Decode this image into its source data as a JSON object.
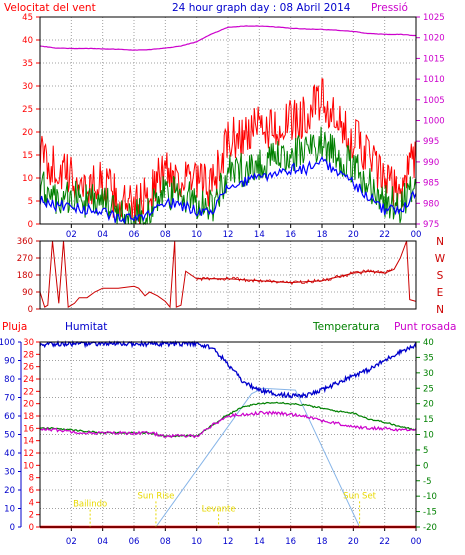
{
  "header": {
    "wind_label": "Velocitat del vent",
    "title": "24 hour graph day : 08 Abril 2014",
    "pressure_label": "Pressió"
  },
  "lower_header": {
    "rain_label": "Pluja",
    "humidity_label": "Humitat",
    "temperature_label": "Temperatura",
    "dewpoint_label": "Punt rosada"
  },
  "colors": {
    "frame": "#000000",
    "grid": "#a0a0a0",
    "wind_gust": "#ff0000",
    "wind_avg": "#008000",
    "wind_dir_avg": "#0000ff",
    "pressure": "#cc00cc",
    "direction": "#cc0000",
    "humidity": "#0000cc",
    "temperature": "#008000",
    "dewpoint": "#cc00cc",
    "rain": "#ff0000",
    "solar": "#87b5e8",
    "astro": "#e8d800"
  },
  "chart_data": [
    {
      "type": "line",
      "name": "wind_pressure",
      "x": [
        0,
        1,
        2,
        3,
        4,
        5,
        6,
        7,
        8,
        9,
        10,
        11,
        12,
        13,
        14,
        15,
        16,
        17,
        18,
        19,
        20,
        21,
        22,
        23,
        24
      ],
      "x_tick_labels": [
        "02",
        "04",
        "06",
        "08",
        "10",
        "12",
        "14",
        "16",
        "18",
        "20",
        "22",
        "00"
      ],
      "ylim_left": [
        0,
        45
      ],
      "y_ticks_left": [
        "0",
        "5",
        "10",
        "15",
        "20",
        "25",
        "30",
        "35",
        "40",
        "45"
      ],
      "ylim_right": [
        975,
        1025
      ],
      "y_ticks_right": [
        "975",
        "980",
        "985",
        "990",
        "995",
        "1000",
        "1005",
        "1010",
        "1015",
        "1020",
        "1025"
      ],
      "series": [
        {
          "values": [
            15,
            12,
            10,
            8,
            9,
            5,
            3,
            7,
            12,
            10,
            9,
            8,
            18,
            19,
            21,
            21,
            22,
            24,
            27,
            21,
            19,
            15,
            9,
            7,
            16
          ]
        },
        {
          "values": [
            8,
            6,
            6,
            5,
            5,
            2,
            2,
            3,
            7,
            6,
            5,
            4,
            11,
            12,
            13,
            14,
            15,
            16,
            18,
            15,
            12,
            9,
            5,
            4,
            10
          ]
        },
        {
          "values": [
            5,
            4,
            4,
            3,
            3,
            1,
            1,
            2,
            5,
            4,
            3,
            3,
            8,
            9,
            10,
            11,
            12,
            12,
            14,
            11,
            9,
            6,
            3,
            3,
            7
          ]
        },
        {
          "values": [
            1018,
            1017.5,
            1017.4,
            1017.4,
            1017.3,
            1017.2,
            1017,
            1017.1,
            1017.5,
            1018,
            1019,
            1021,
            1022.5,
            1022.8,
            1022.8,
            1022.6,
            1022.3,
            1022.1,
            1022,
            1021.8,
            1021.5,
            1021,
            1020.8,
            1020.8,
            1020.5
          ]
        }
      ]
    },
    {
      "type": "line",
      "name": "wind_direction",
      "x": [
        0,
        0.3,
        0.5,
        0.8,
        1.2,
        1.5,
        1.8,
        2.2,
        2.5,
        3,
        3.5,
        4,
        5,
        6,
        6.3,
        6.7,
        7,
        7.5,
        8,
        8.3,
        8.6,
        8.7,
        9,
        9.3,
        10,
        12,
        14,
        16,
        18,
        19,
        20,
        21,
        22,
        22.6,
        23,
        23.4,
        23.6,
        24
      ],
      "y": [
        90,
        10,
        20,
        360,
        30,
        360,
        10,
        30,
        60,
        60,
        90,
        110,
        110,
        120,
        110,
        70,
        90,
        70,
        40,
        10,
        360,
        10,
        20,
        200,
        160,
        160,
        150,
        140,
        150,
        170,
        190,
        200,
        190,
        210,
        270,
        360,
        50,
        40
      ],
      "ylim": [
        0,
        360
      ],
      "y_ticks": [
        "0",
        "90",
        "180",
        "270",
        "360"
      ],
      "direction_labels": [
        "N",
        "W",
        "S",
        "E",
        "N"
      ]
    },
    {
      "type": "line",
      "name": "humidity_temperature",
      "x": [
        0,
        1,
        2,
        3,
        4,
        5,
        6,
        7,
        8,
        9,
        10,
        11,
        12,
        13,
        14,
        15,
        16,
        17,
        18,
        19,
        20,
        21,
        22,
        23,
        24
      ],
      "left_ticks_humidity": [
        "0",
        "10",
        "20",
        "30",
        "40",
        "50",
        "60",
        "70",
        "80",
        "90",
        "100"
      ],
      "left_ticks_rain": [
        "0",
        "2",
        "4",
        "6",
        "8",
        "10",
        "12",
        "14",
        "16",
        "18",
        "20",
        "22",
        "24",
        "26",
        "28",
        "30"
      ],
      "right_ticks_temperature": [
        "-20",
        "-15",
        "-10",
        "-5",
        "0",
        "5",
        "10",
        "15",
        "20",
        "25",
        "30",
        "35",
        "40"
      ],
      "ylim_humidity": [
        0,
        100
      ],
      "ylim_rain": [
        0,
        30
      ],
      "ylim_temperature": [
        -20,
        40
      ],
      "series": [
        {
          "values": [
            98,
            99,
            99,
            99,
            99,
            99,
            99,
            99,
            99,
            99,
            99,
            97,
            88,
            78,
            74,
            72,
            71,
            71,
            74,
            78,
            82,
            85,
            90,
            95,
            98
          ]
        },
        {
          "values": [
            12,
            12,
            11.5,
            11,
            10.5,
            10.5,
            10.5,
            10.5,
            9.5,
            9.5,
            9.5,
            13,
            16.5,
            19,
            20,
            20.5,
            20,
            19.5,
            18.5,
            17.5,
            17,
            15,
            14,
            12.5,
            11.5
          ]
        },
        {
          "values": [
            12,
            11.5,
            11,
            10.5,
            10.5,
            10.5,
            10.5,
            10.5,
            9.5,
            9.5,
            9.5,
            13,
            16,
            16.5,
            17,
            17,
            16.5,
            16,
            14.5,
            13.5,
            12.5,
            12,
            12,
            11.5,
            11.5
          ]
        },
        {
          "values": [
            0,
            0,
            0,
            0,
            0,
            0,
            0,
            0,
            0,
            0,
            0,
            0,
            0,
            0,
            0,
            0,
            0,
            0,
            0,
            0,
            0,
            0,
            0,
            0,
            0
          ]
        }
      ],
      "solar_curve": {
        "x": [
          7.4,
          13.5,
          14.2,
          16.3,
          20.4
        ],
        "y": [
          0,
          72,
          75,
          74,
          0
        ]
      },
      "astro_events": [
        {
          "label": "Bailindo",
          "x": 3.2,
          "y": 11
        },
        {
          "label": "Sun Rise",
          "x": 7.4,
          "y": 15.5
        },
        {
          "label": "Levante",
          "x": 11.4,
          "y": 8.5
        },
        {
          "label": "Sun Set",
          "x": 20.4,
          "y": 15.5
        }
      ]
    }
  ]
}
